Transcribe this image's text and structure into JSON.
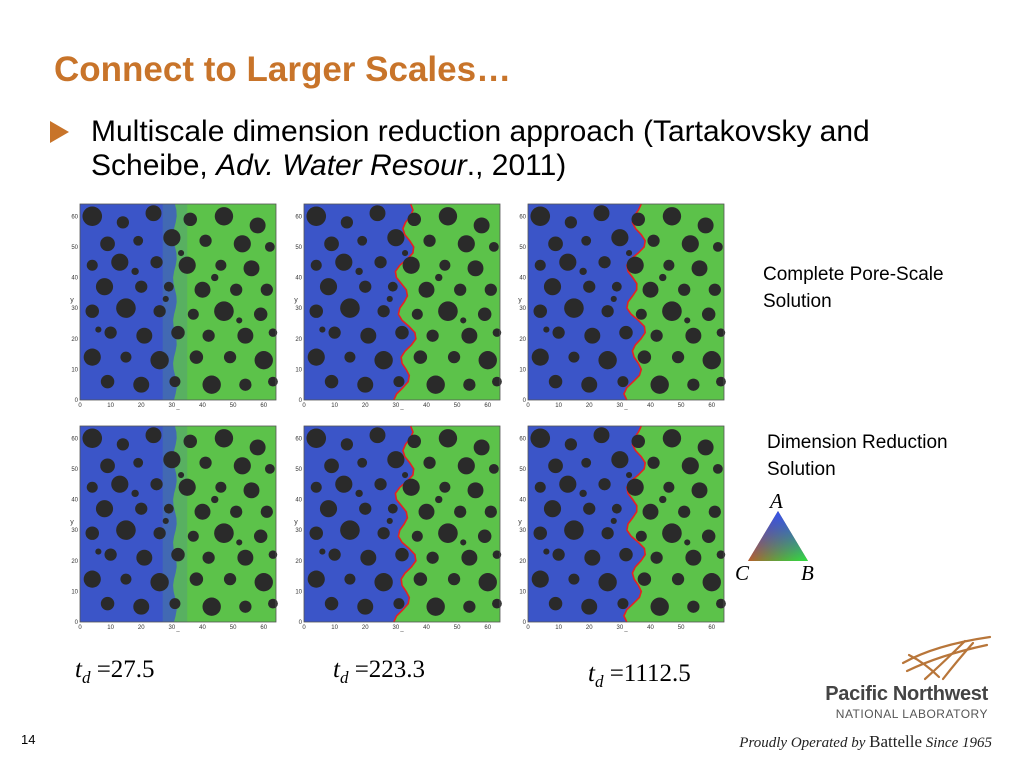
{
  "slide": {
    "title": "Connect to Larger Scales…",
    "bullet": {
      "text_plain": "Multiscale dimension reduction approach  (Tartakovsky and Scheibe, ",
      "journal": "Adv. Water Resour",
      "text_end": "., 2011)"
    },
    "page_number": "14"
  },
  "labels": {
    "complete": "Complete Pore-Scale Solution",
    "reduction": "Dimension Reduction Solution"
  },
  "legend": {
    "a": "A",
    "b": "B",
    "c": "C"
  },
  "axis": {
    "x_ticks": [
      "0",
      "10",
      "20",
      "30",
      "40",
      "50",
      "60"
    ],
    "y_ticks": [
      "0",
      "10",
      "20",
      "30",
      "40",
      "50",
      "60"
    ],
    "x_label": "x",
    "y_label": "y"
  },
  "times": [
    {
      "symbol": "t",
      "sub": "d",
      "value": "=27.5"
    },
    {
      "symbol": "t",
      "sub": "d",
      "value": "=223.3"
    },
    {
      "symbol": "t",
      "sub": "d",
      "value": "=1112.5"
    }
  ],
  "footer": {
    "org_name": "Pacific Northwest",
    "org_sub": "NATIONAL LABORATORY",
    "operated_prefix": "Proudly Operated by ",
    "operated_name": "Battelle",
    "operated_suffix": " Since 1965"
  },
  "colors": {
    "accent": "#c8742a",
    "fluid_a_blue": "#3b55c8",
    "fluid_b_green": "#5cc24a",
    "interface_red": "#e52222",
    "grain": "#2a2a2a"
  }
}
